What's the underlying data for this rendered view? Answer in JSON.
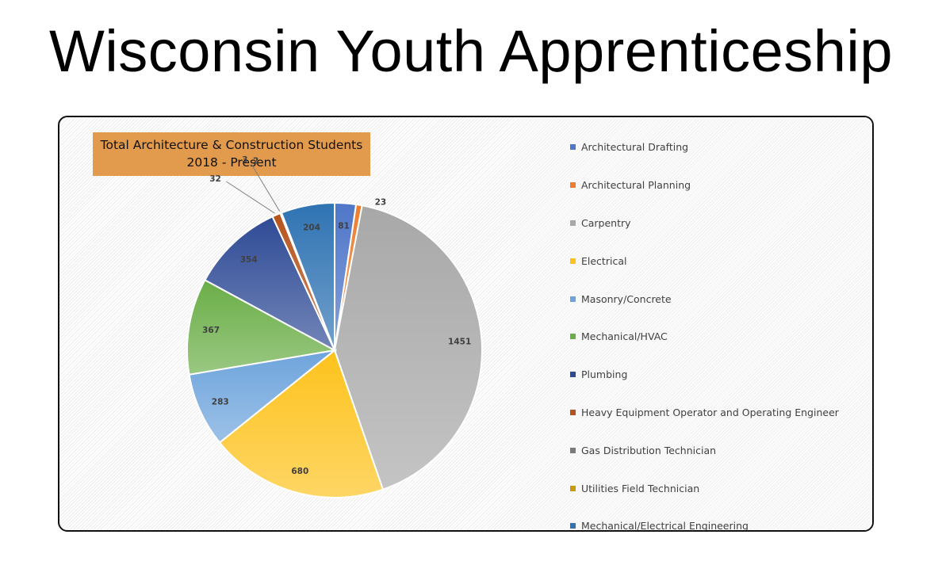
{
  "page": {
    "title": "Wisconsin Youth Apprenticeship"
  },
  "chart_data": {
    "type": "pie",
    "title_line1": "Total Architecture & Construction Students",
    "title_line2": "2018 - Present",
    "legend_position": "right",
    "categories": [
      "Architectural Drafting",
      "Architectural Planning",
      "Carpentry",
      "Electrical",
      "Masonry/Concrete",
      "Mechanical/HVAC",
      "Plumbing",
      "Heavy Equipment Operator and Operating Engineer",
      "Gas Distribution Technician",
      "Utilities Field Technician",
      "Mechanical/Electrical Engineering"
    ],
    "values": [
      81,
      23,
      1451,
      680,
      283,
      367,
      354,
      32,
      3,
      2,
      204
    ],
    "colors": [
      "#4f76c9",
      "#ec7d31",
      "#a8a8a8",
      "#fdc21c",
      "#6ea4dc",
      "#6aae47",
      "#2f4b96",
      "#b6531d",
      "#7a7a7a",
      "#c99a10",
      "#2f73b3"
    ]
  }
}
